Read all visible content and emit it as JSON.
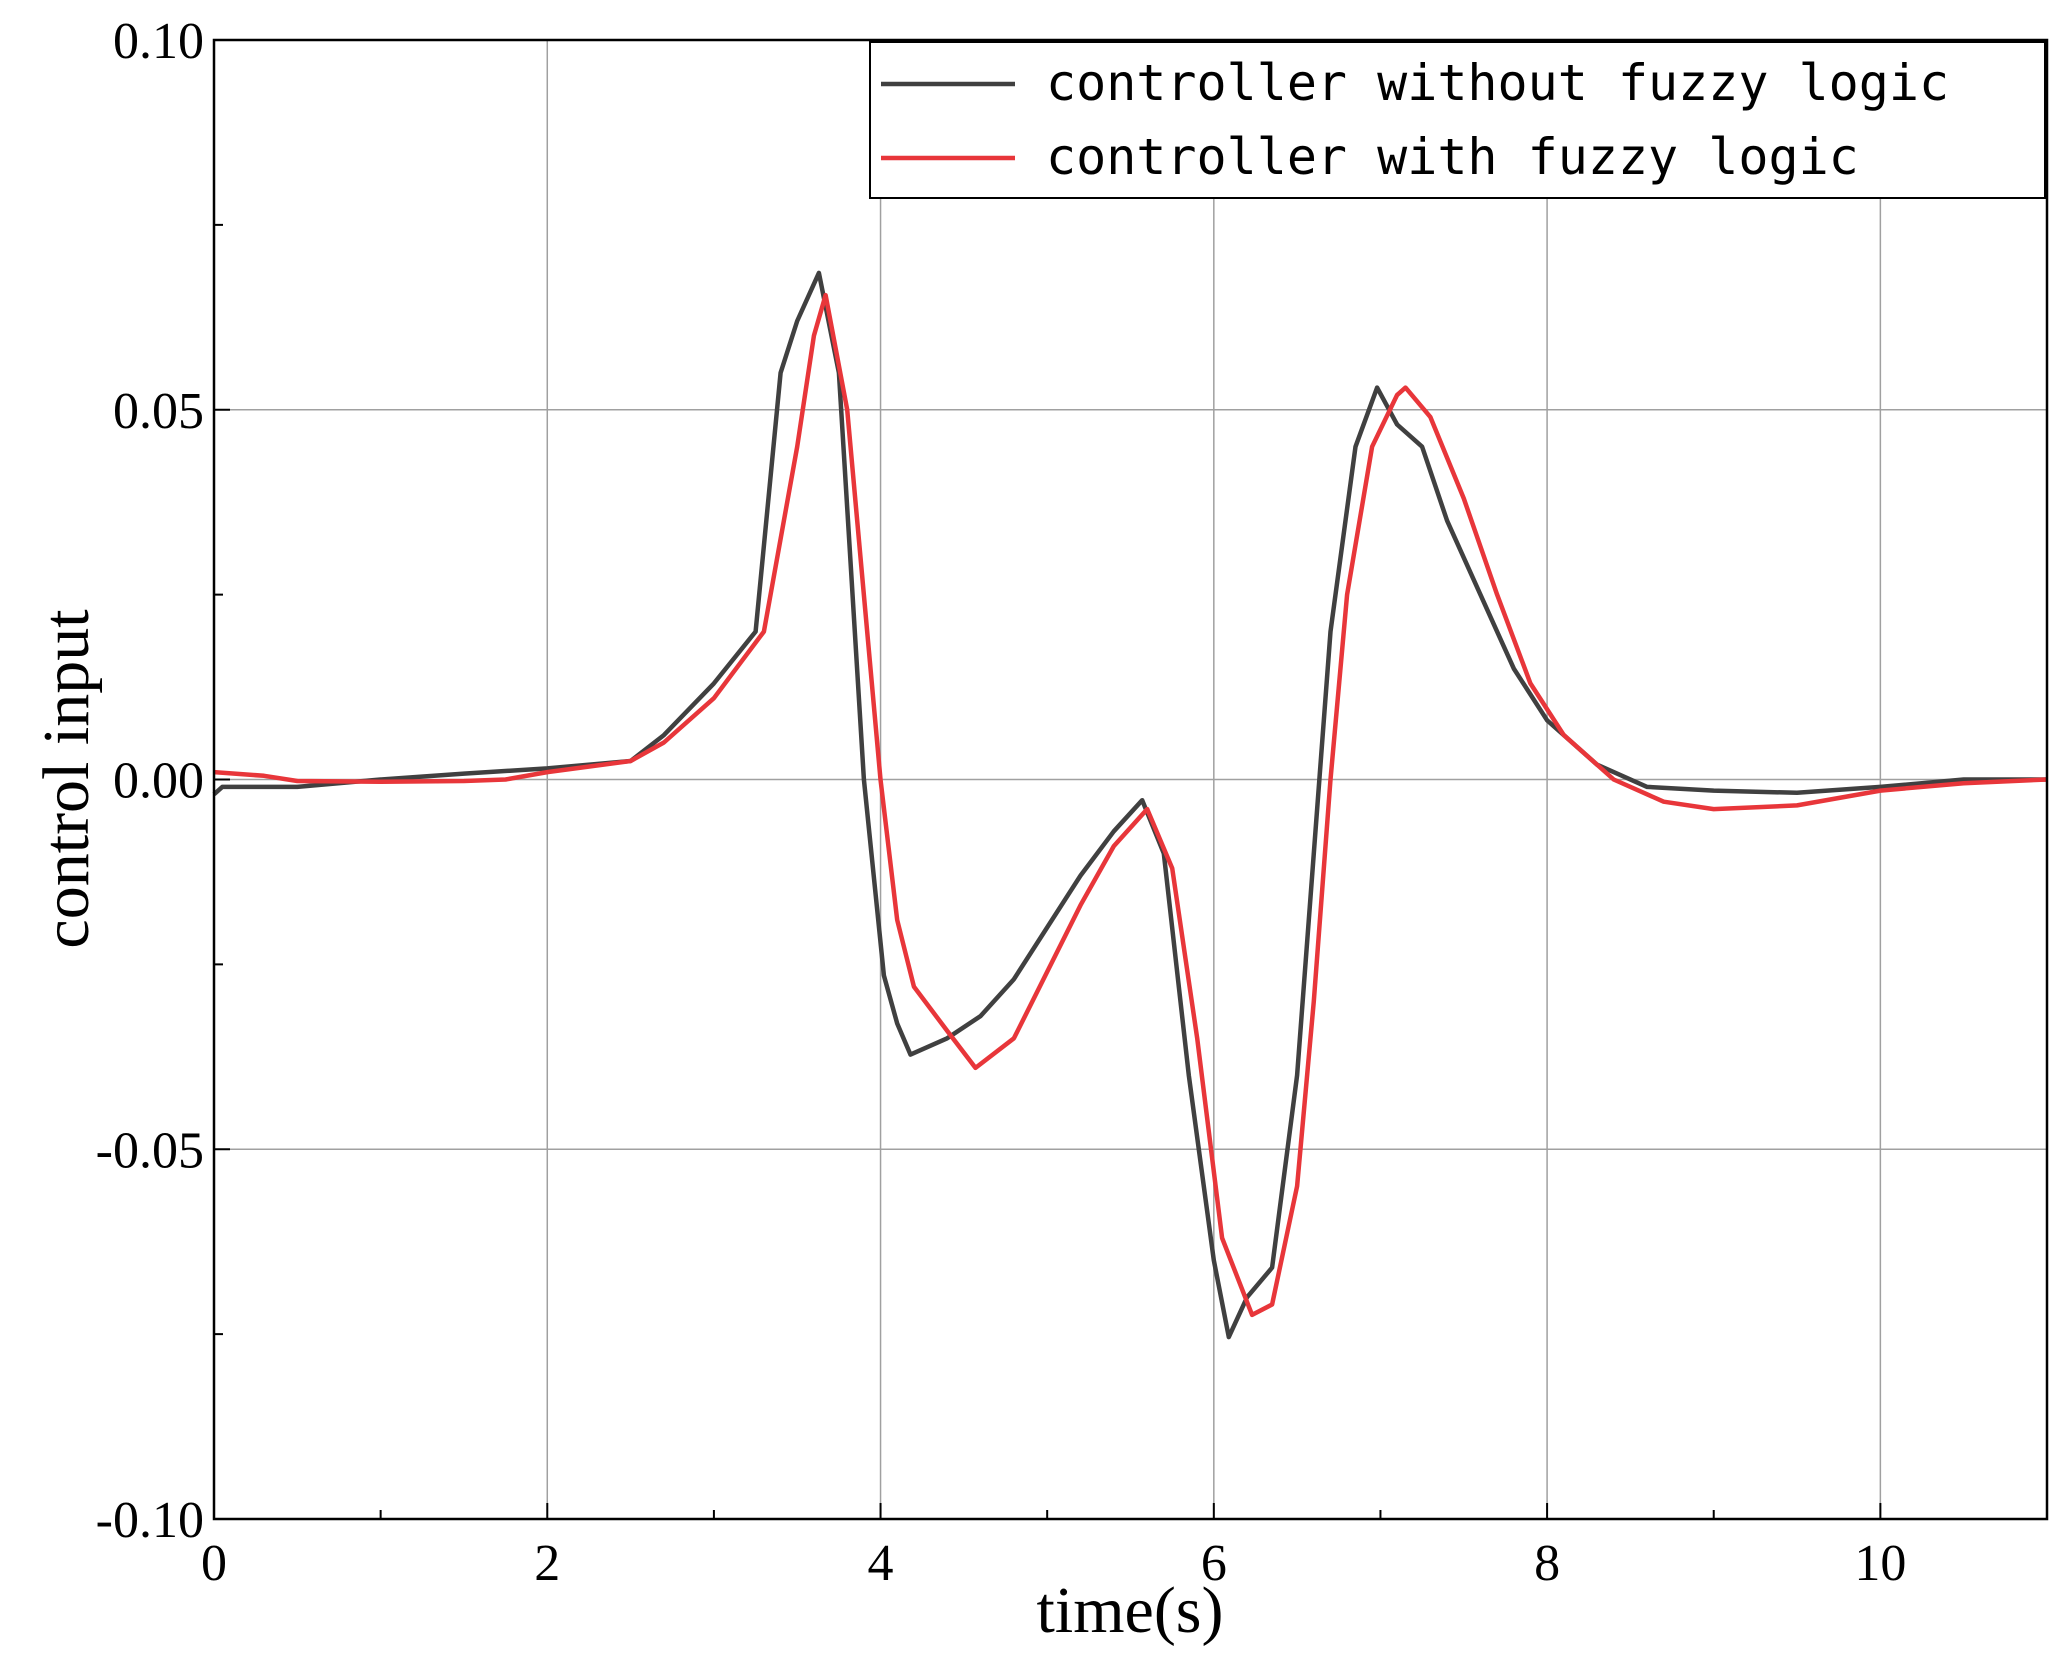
{
  "chart_data": {
    "type": "line",
    "x_label": "time(s)",
    "y_label": "control input",
    "xlim": [
      0,
      11
    ],
    "xticks": [
      0,
      2,
      4,
      6,
      8,
      10
    ],
    "xminorticks": [
      1,
      3,
      5,
      7,
      9
    ],
    "ylim": [
      -0.1,
      0.1
    ],
    "yticks": [
      {
        "value": -0.1,
        "label": "-0.10"
      },
      {
        "value": -0.05,
        "label": "-0.05"
      },
      {
        "value": 0,
        "label": "0.00"
      },
      {
        "value": 0.05,
        "label": "0.05"
      },
      {
        "value": 0.1,
        "label": "0.10"
      }
    ],
    "yminorticks": [
      -0.075,
      -0.025,
      0.025,
      0.075
    ],
    "grid": true,
    "legend": "top-right",
    "series": [
      {
        "name": "controller without fuzzy logic",
        "color": "#404040",
        "x": [
          0,
          0.05,
          0.5,
          1,
          1.5,
          2,
          2.5,
          2.7,
          3,
          3.25,
          3.4,
          3.5,
          3.63,
          3.75,
          3.9,
          4.02,
          4.1,
          4.18,
          4.4,
          4.6,
          4.8,
          5,
          5.2,
          5.4,
          5.57,
          5.7,
          5.85,
          6,
          6.09,
          6.2,
          6.35,
          6.5,
          6.6,
          6.7,
          6.85,
          6.98,
          7.1,
          7.25,
          7.4,
          7.6,
          7.8,
          8,
          8.3,
          8.6,
          9,
          9.5,
          10,
          10.5,
          11
        ],
        "values": [
          -0.002,
          -0.001,
          -0.001,
          0,
          0.0008,
          0.0015,
          0.0025,
          0.006,
          0.013,
          0.02,
          0.055,
          0.062,
          0.0685,
          0.055,
          0.0,
          -0.0265,
          -0.033,
          -0.0372,
          -0.035,
          -0.032,
          -0.027,
          -0.02,
          -0.013,
          -0.007,
          -0.0028,
          -0.01,
          -0.04,
          -0.065,
          -0.0754,
          -0.07,
          -0.066,
          -0.04,
          -0.01,
          0.02,
          0.045,
          0.053,
          0.048,
          0.045,
          0.035,
          0.025,
          0.015,
          0.008,
          0.002,
          -0.001,
          -0.0015,
          -0.0018,
          -0.001,
          0,
          0
        ]
      },
      {
        "name": "controller with fuzzy logic",
        "color": "#e8363a",
        "x": [
          0,
          0.3,
          0.5,
          1,
          1.5,
          1.75,
          2,
          2.5,
          2.7,
          3,
          3.3,
          3.5,
          3.6,
          3.67,
          3.8,
          4,
          4.1,
          4.2,
          4.4,
          4.57,
          4.8,
          5,
          5.2,
          5.4,
          5.6,
          5.75,
          5.9,
          6.05,
          6.23,
          6.35,
          6.5,
          6.6,
          6.7,
          6.8,
          6.95,
          7.1,
          7.15,
          7.3,
          7.5,
          7.7,
          7.9,
          8.1,
          8.4,
          8.7,
          9,
          9.5,
          10,
          10.5,
          11
        ],
        "values": [
          0.001,
          0.0005,
          -0.0002,
          -0.0003,
          -0.0002,
          0,
          0.001,
          0.0025,
          0.005,
          0.011,
          0.02,
          0.045,
          0.06,
          0.0655,
          0.05,
          0.0,
          -0.019,
          -0.028,
          -0.034,
          -0.039,
          -0.035,
          -0.026,
          -0.017,
          -0.009,
          -0.004,
          -0.012,
          -0.035,
          -0.062,
          -0.0724,
          -0.071,
          -0.055,
          -0.03,
          0.0,
          0.025,
          0.045,
          0.052,
          0.053,
          0.049,
          0.038,
          0.025,
          0.013,
          0.006,
          0.0,
          -0.003,
          -0.004,
          -0.0035,
          -0.0015,
          -0.0005,
          0
        ]
      }
    ]
  }
}
